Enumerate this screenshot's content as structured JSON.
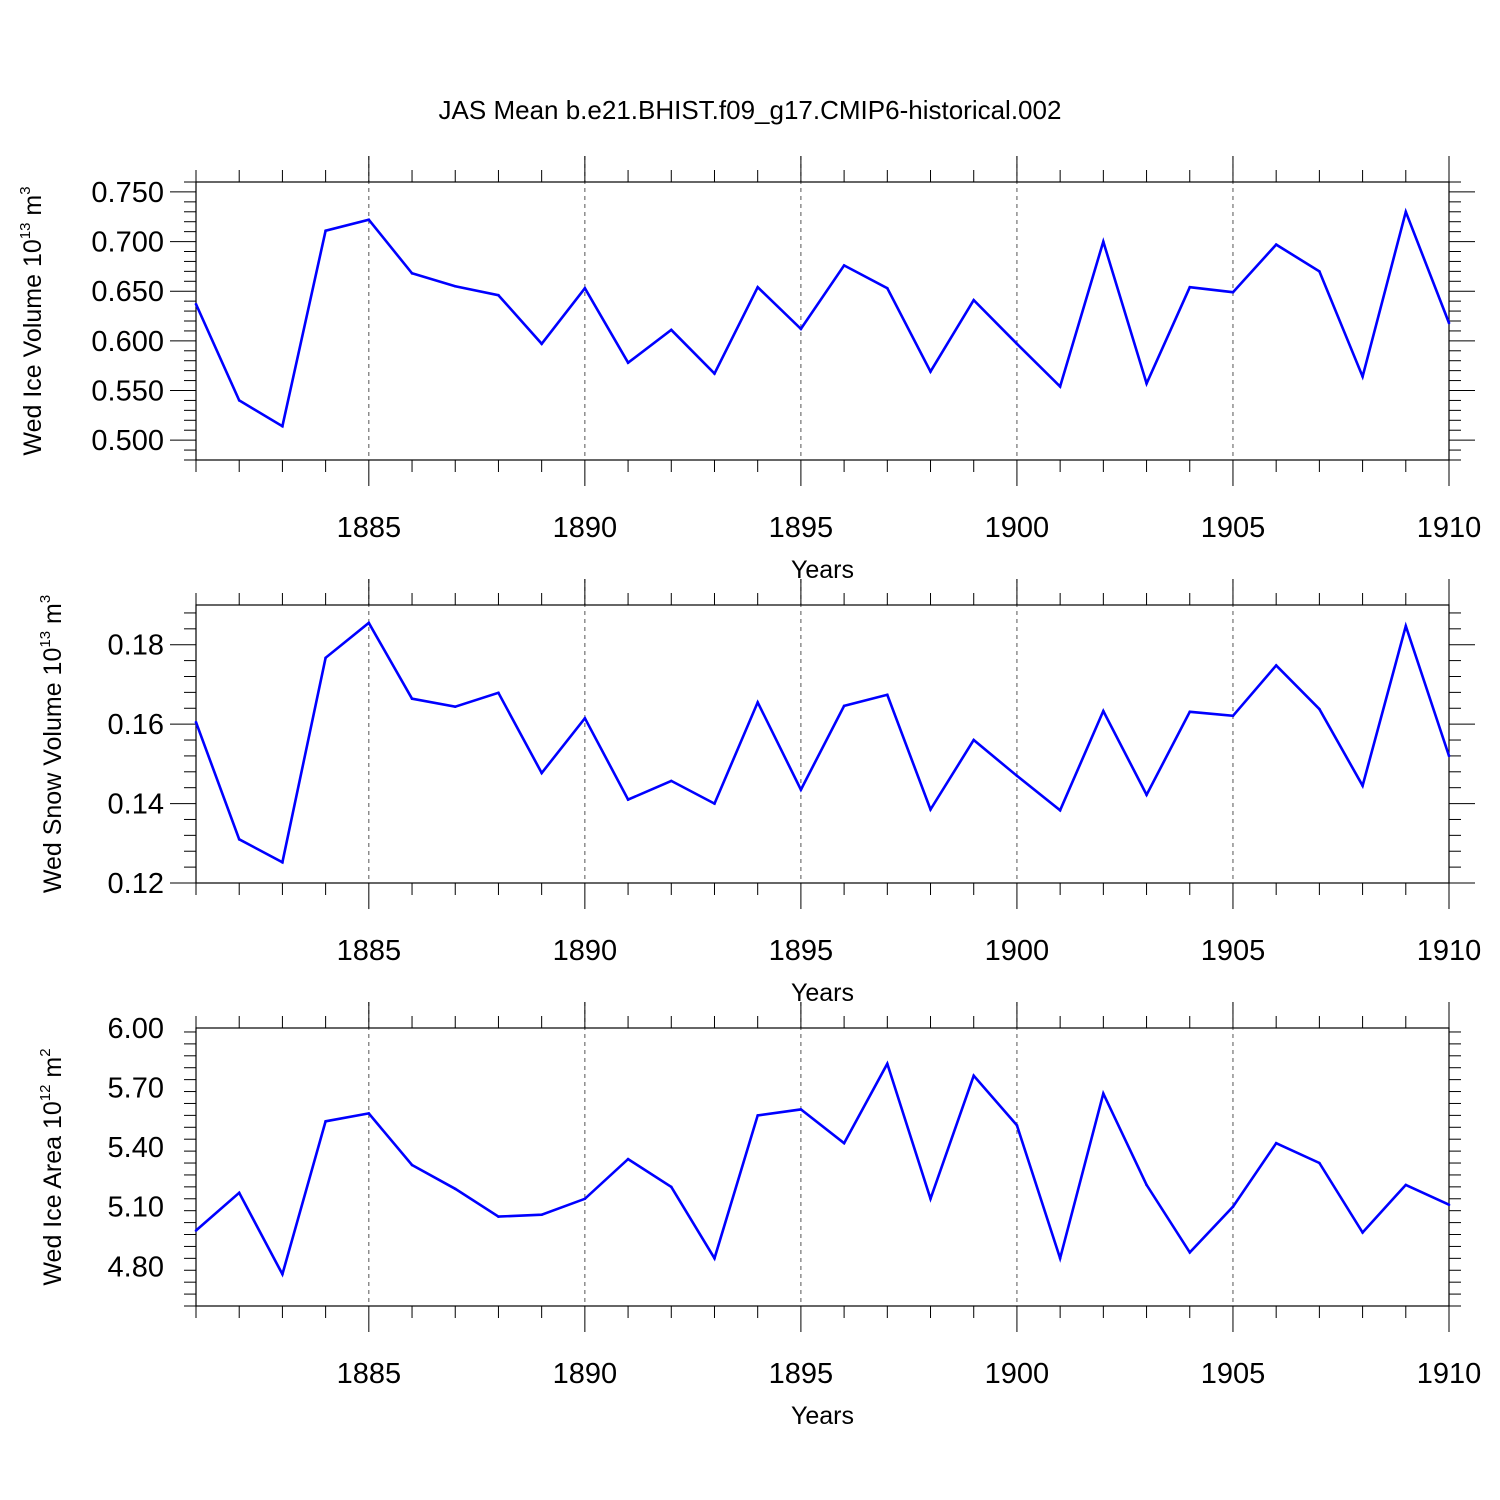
{
  "title": "JAS Mean b.e21.BHIST.f09_g17.CMIP6-historical.002",
  "colors": {
    "series": "#0000ff",
    "axes": "#000000",
    "grid": "#555555"
  },
  "chart_data": [
    {
      "type": "line",
      "title": "",
      "xlabel": "Years",
      "ylabel": {
        "text": "Wed Ice Volume 10",
        "exp": "13",
        "unit": " m",
        "unit_exp": "3"
      },
      "xlim": [
        1881,
        1910
      ],
      "ylim": [
        0.48,
        0.76
      ],
      "xticks": [
        1885,
        1890,
        1895,
        1900,
        1905,
        1910
      ],
      "yticks": [
        "0.750",
        "0.700",
        "0.650",
        "0.600",
        "0.550",
        "0.500"
      ],
      "grid": "vertical dashed at labeled years",
      "x": [
        1881,
        1882,
        1883,
        1884,
        1885,
        1886,
        1887,
        1888,
        1889,
        1890,
        1891,
        1892,
        1893,
        1894,
        1895,
        1896,
        1897,
        1898,
        1899,
        1900,
        1901,
        1902,
        1903,
        1904,
        1905,
        1906,
        1907,
        1908,
        1909,
        1910
      ],
      "y": [
        0.637,
        0.54,
        0.514,
        0.711,
        0.722,
        0.668,
        0.655,
        0.646,
        0.597,
        0.653,
        0.578,
        0.611,
        0.567,
        0.654,
        0.612,
        0.676,
        0.653,
        0.569,
        0.641,
        0.597,
        0.554,
        0.7,
        0.557,
        0.654,
        0.649,
        0.697,
        0.67,
        0.564,
        0.73,
        0.618
      ]
    },
    {
      "type": "line",
      "title": "",
      "xlabel": "Years",
      "ylabel": {
        "text": "Wed Snow Volume 10",
        "exp": "13",
        "unit": " m",
        "unit_exp": "3"
      },
      "xlim": [
        1881,
        1910
      ],
      "ylim": [
        0.12,
        0.19
      ],
      "xticks": [
        1885,
        1890,
        1895,
        1900,
        1905,
        1910
      ],
      "yticks": [
        "0.18",
        "0.16",
        "0.14",
        "0.12"
      ],
      "grid": "vertical dashed at labeled years",
      "x": [
        1881,
        1882,
        1883,
        1884,
        1885,
        1886,
        1887,
        1888,
        1889,
        1890,
        1891,
        1892,
        1893,
        1894,
        1895,
        1896,
        1897,
        1898,
        1899,
        1900,
        1901,
        1902,
        1903,
        1904,
        1905,
        1906,
        1907,
        1908,
        1909,
        1910
      ],
      "y": [
        0.1605,
        0.131,
        0.1252,
        0.1767,
        0.1855,
        0.1664,
        0.1644,
        0.1679,
        0.1477,
        0.1615,
        0.141,
        0.1457,
        0.14,
        0.1655,
        0.1435,
        0.1646,
        0.1674,
        0.1385,
        0.156,
        0.147,
        0.1383,
        0.1633,
        0.1422,
        0.1631,
        0.1621,
        0.1748,
        0.1638,
        0.1445,
        0.1847,
        0.152
      ]
    },
    {
      "type": "line",
      "title": "",
      "xlabel": "Years",
      "ylabel": {
        "text": "Wed Ice Area 10",
        "exp": "12",
        "unit": " m",
        "unit_exp": "2"
      },
      "xlim": [
        1881,
        1910
      ],
      "ylim": [
        4.6,
        6.0
      ],
      "xticks": [
        1885,
        1890,
        1895,
        1900,
        1905,
        1910
      ],
      "yticks": [
        "6.00",
        "5.70",
        "5.40",
        "5.10",
        "4.80"
      ],
      "grid": "vertical dashed at labeled years",
      "x": [
        1881,
        1882,
        1883,
        1884,
        1885,
        1886,
        1887,
        1888,
        1889,
        1890,
        1891,
        1892,
        1893,
        1894,
        1895,
        1896,
        1897,
        1898,
        1899,
        1900,
        1901,
        1902,
        1903,
        1904,
        1905,
        1906,
        1907,
        1908,
        1909,
        1910
      ],
      "y": [
        4.98,
        5.17,
        4.76,
        5.53,
        5.57,
        5.31,
        5.19,
        5.05,
        5.06,
        5.14,
        5.34,
        5.2,
        4.84,
        5.56,
        5.59,
        5.42,
        5.82,
        5.14,
        5.76,
        5.51,
        4.84,
        5.67,
        5.21,
        4.87,
        5.1,
        5.42,
        5.32,
        4.97,
        5.21,
        5.11
      ]
    }
  ]
}
